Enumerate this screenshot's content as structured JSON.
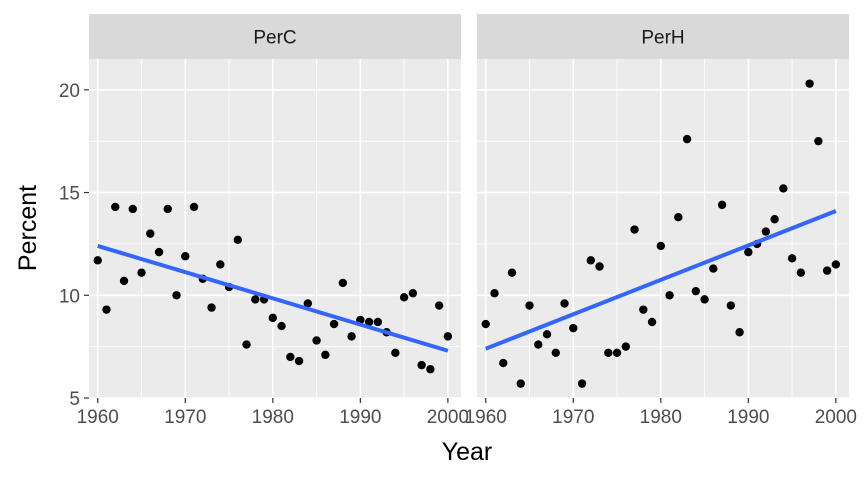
{
  "chart_data": {
    "type": "scatter",
    "xlabel": "Year",
    "ylabel": "Percent",
    "xlim": [
      1959,
      2001.5
    ],
    "ylim": [
      5,
      21.5
    ],
    "x_ticks": [
      1960,
      1970,
      1980,
      1990,
      2000
    ],
    "y_ticks": [
      5,
      10,
      15,
      20
    ],
    "grid": true,
    "trend_color": "#3366FF",
    "point_color": "#000000",
    "panel_bg": "#EBEBEB",
    "strip_bg": "#D9D9D9",
    "panels": [
      {
        "name": "PerC",
        "points": [
          [
            1960,
            11.7
          ],
          [
            1961,
            9.3
          ],
          [
            1962,
            14.3
          ],
          [
            1963,
            10.7
          ],
          [
            1964,
            14.2
          ],
          [
            1965,
            11.1
          ],
          [
            1966,
            13.0
          ],
          [
            1967,
            12.1
          ],
          [
            1968,
            14.2
          ],
          [
            1969,
            10.0
          ],
          [
            1970,
            11.9
          ],
          [
            1971,
            14.3
          ],
          [
            1972,
            10.8
          ],
          [
            1973,
            9.4
          ],
          [
            1974,
            11.5
          ],
          [
            1975,
            10.4
          ],
          [
            1976,
            12.7
          ],
          [
            1977,
            7.6
          ],
          [
            1978,
            9.8
          ],
          [
            1979,
            9.8
          ],
          [
            1980,
            8.9
          ],
          [
            1981,
            8.5
          ],
          [
            1982,
            7.0
          ],
          [
            1983,
            6.8
          ],
          [
            1984,
            9.6
          ],
          [
            1985,
            7.8
          ],
          [
            1986,
            7.1
          ],
          [
            1987,
            8.6
          ],
          [
            1988,
            10.6
          ],
          [
            1989,
            8.0
          ],
          [
            1990,
            8.8
          ],
          [
            1991,
            8.7
          ],
          [
            1992,
            8.7
          ],
          [
            1993,
            8.2
          ],
          [
            1994,
            7.2
          ],
          [
            1995,
            9.9
          ],
          [
            1996,
            10.1
          ],
          [
            1997,
            6.6
          ],
          [
            1998,
            6.4
          ],
          [
            1999,
            9.5
          ],
          [
            2000,
            8.0
          ]
        ],
        "trend": {
          "x": [
            1960,
            2000
          ],
          "y": [
            12.4,
            7.3
          ]
        }
      },
      {
        "name": "PerH",
        "points": [
          [
            1960,
            8.6
          ],
          [
            1961,
            10.1
          ],
          [
            1962,
            6.7
          ],
          [
            1963,
            11.1
          ],
          [
            1964,
            5.7
          ],
          [
            1965,
            9.5
          ],
          [
            1966,
            7.6
          ],
          [
            1967,
            8.1
          ],
          [
            1968,
            7.2
          ],
          [
            1969,
            9.6
          ],
          [
            1970,
            8.4
          ],
          [
            1971,
            5.7
          ],
          [
            1972,
            11.7
          ],
          [
            1973,
            11.4
          ],
          [
            1974,
            7.2
          ],
          [
            1975,
            7.2
          ],
          [
            1976,
            7.5
          ],
          [
            1977,
            13.2
          ],
          [
            1978,
            9.3
          ],
          [
            1979,
            8.7
          ],
          [
            1980,
            12.4
          ],
          [
            1981,
            10.0
          ],
          [
            1982,
            13.8
          ],
          [
            1983,
            17.6
          ],
          [
            1984,
            10.2
          ],
          [
            1985,
            9.8
          ],
          [
            1986,
            11.3
          ],
          [
            1987,
            14.4
          ],
          [
            1988,
            9.5
          ],
          [
            1989,
            8.2
          ],
          [
            1990,
            12.1
          ],
          [
            1991,
            12.5
          ],
          [
            1992,
            13.1
          ],
          [
            1993,
            13.7
          ],
          [
            1994,
            15.2
          ],
          [
            1995,
            11.8
          ],
          [
            1996,
            11.1
          ],
          [
            1997,
            20.3
          ],
          [
            1998,
            17.5
          ],
          [
            1999,
            11.2
          ],
          [
            2000,
            11.5
          ]
        ],
        "trend": {
          "x": [
            1960,
            2000
          ],
          "y": [
            7.4,
            14.1
          ]
        }
      }
    ]
  }
}
